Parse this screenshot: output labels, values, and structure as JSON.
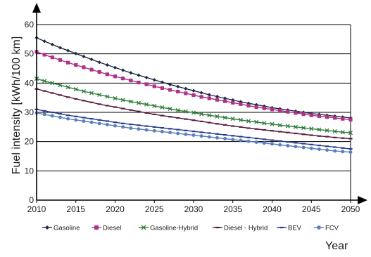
{
  "chart_data": {
    "type": "line",
    "title": "",
    "xlabel": "Year",
    "ylabel": "Fuel intensity [kWh/100 km]",
    "xlim": [
      2010,
      2050
    ],
    "ylim": [
      0,
      60
    ],
    "xticks": [
      "2010",
      "2015",
      "2020",
      "2025",
      "2030",
      "2035",
      "2040",
      "2045",
      "2050"
    ],
    "yticks": [
      "0",
      "10",
      "20",
      "30",
      "40",
      "50",
      "60"
    ],
    "grid": "horizontal",
    "legend_position": "bottom",
    "x": [
      2010,
      2011,
      2012,
      2013,
      2014,
      2015,
      2016,
      2017,
      2018,
      2019,
      2020,
      2021,
      2022,
      2023,
      2024,
      2025,
      2026,
      2027,
      2028,
      2029,
      2030,
      2031,
      2032,
      2033,
      2034,
      2035,
      2036,
      2037,
      2038,
      2039,
      2040,
      2041,
      2042,
      2043,
      2044,
      2045,
      2046,
      2047,
      2048,
      2049,
      2050
    ],
    "series": [
      {
        "name": "Gasoline",
        "color": "#1f2a44",
        "marker": "diamond",
        "values": [
          55.5,
          54.3,
          53.2,
          52.1,
          51.1,
          50.1,
          49.1,
          48.1,
          47.1,
          46.2,
          45.3,
          44.4,
          43.5,
          42.7,
          41.9,
          41.1,
          40.3,
          39.5,
          38.8,
          38.1,
          37.4,
          36.7,
          36.0,
          35.4,
          34.8,
          34.2,
          33.6,
          33.1,
          32.6,
          32.1,
          31.6,
          31.2,
          30.8,
          30.4,
          30.0,
          29.6,
          29.3,
          29.0,
          28.7,
          28.4,
          28.1
        ]
      },
      {
        "name": "Diesel",
        "color": "#b0308a",
        "marker": "square",
        "values": [
          50.7,
          49.7,
          48.8,
          47.9,
          47.0,
          46.2,
          45.4,
          44.6,
          43.8,
          43.0,
          42.3,
          41.6,
          40.9,
          40.2,
          39.6,
          38.9,
          38.3,
          37.7,
          37.1,
          36.5,
          35.9,
          35.3,
          34.8,
          34.3,
          33.8,
          33.3,
          32.8,
          32.3,
          31.8,
          31.4,
          31.0,
          30.6,
          30.2,
          29.8,
          29.4,
          29.0,
          28.7,
          28.4,
          28.1,
          27.8,
          27.5
        ]
      },
      {
        "name": "Gasoline-Hybrid",
        "color": "#2f7d3a",
        "marker": "x",
        "values": [
          41.5,
          40.7,
          40.0,
          39.3,
          38.6,
          37.9,
          37.2,
          36.6,
          36.0,
          35.4,
          34.8,
          34.2,
          33.7,
          33.2,
          32.7,
          32.2,
          31.7,
          31.2,
          30.7,
          30.3,
          29.9,
          29.4,
          29.0,
          28.6,
          28.2,
          27.8,
          27.4,
          27.0,
          26.7,
          26.3,
          26.0,
          25.6,
          25.3,
          25.0,
          24.7,
          24.4,
          24.1,
          23.8,
          23.5,
          23.2,
          23.0
        ]
      },
      {
        "name": "Diesel - Hybrid",
        "color": "#5a1a3c",
        "marker": "dash",
        "values": [
          38.0,
          37.3,
          36.6,
          35.9,
          35.2,
          34.6,
          34.0,
          33.4,
          32.8,
          32.3,
          31.8,
          31.3,
          30.8,
          30.3,
          29.8,
          29.3,
          28.9,
          28.5,
          28.1,
          27.7,
          27.3,
          26.9,
          26.5,
          26.1,
          25.7,
          25.3,
          25.0,
          24.6,
          24.3,
          24.0,
          23.7,
          23.4,
          23.1,
          22.8,
          22.5,
          22.2,
          21.9,
          21.7,
          21.4,
          21.2,
          21.0
        ]
      },
      {
        "name": "BEV",
        "color": "#2a3a8c",
        "marker": "dash",
        "values": [
          31.0,
          30.5,
          30.0,
          29.5,
          29.0,
          28.6,
          28.2,
          27.8,
          27.4,
          27.0,
          26.6,
          26.2,
          25.9,
          25.6,
          25.3,
          25.0,
          24.7,
          24.4,
          24.1,
          23.8,
          23.5,
          23.2,
          22.9,
          22.6,
          22.3,
          22.0,
          21.7,
          21.4,
          21.1,
          20.8,
          20.5,
          20.2,
          19.9,
          19.6,
          19.3,
          19.0,
          18.7,
          18.4,
          18.1,
          17.8,
          17.5
        ]
      },
      {
        "name": "FCV",
        "color": "#5a7fc0",
        "marker": "circle",
        "values": [
          29.8,
          29.3,
          28.8,
          28.3,
          27.8,
          27.4,
          27.0,
          26.6,
          26.2,
          25.8,
          25.4,
          25.0,
          24.6,
          24.3,
          24.0,
          23.7,
          23.4,
          23.1,
          22.8,
          22.5,
          22.2,
          21.9,
          21.6,
          21.3,
          21.0,
          20.7,
          20.4,
          20.1,
          19.8,
          19.5,
          19.2,
          18.9,
          18.6,
          18.3,
          18.0,
          17.7,
          17.4,
          17.1,
          16.8,
          16.6,
          16.4
        ]
      }
    ]
  }
}
